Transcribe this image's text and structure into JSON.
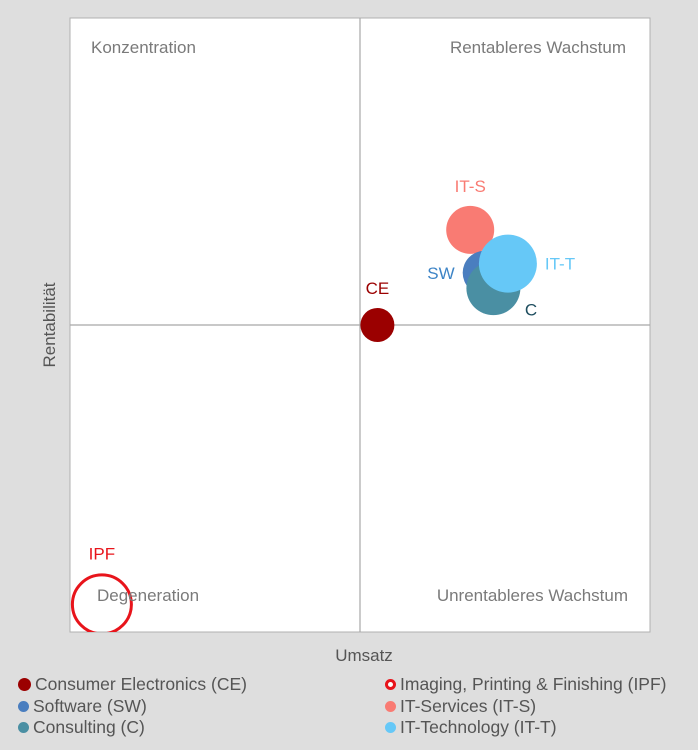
{
  "chart_data": {
    "type": "scatter",
    "subtype": "bubble-quadrant",
    "xlabel": "Umsatz",
    "ylabel": "Rentabilität",
    "xlim": [
      -1,
      1
    ],
    "ylim": [
      -1,
      1
    ],
    "grid": false,
    "quadrants": {
      "top_left": "Konzentration",
      "top_right": "Rentableres Wachstum",
      "bottom_left": "Degeneration",
      "bottom_right": "Unrentableres Wachstum"
    },
    "legend_placement": "bottom",
    "series": [
      {
        "name": "Consumer Electronics (CE)",
        "label": "CE",
        "x": 0.06,
        "y": 0.0,
        "size": 17,
        "color": "#9b0000",
        "label_color": "#9b0000",
        "label_pos": "top",
        "style": "filled"
      },
      {
        "name": "Imaging, Printing & Finishing (IPF)",
        "label": "IPF",
        "x": -0.89,
        "y": -0.91,
        "size": 31,
        "color": "#e8141b",
        "label_color": "#e8141b",
        "label_pos": "top",
        "style": "ring"
      },
      {
        "name": "IT-Services (IT-S)",
        "label": "IT-S",
        "x": 0.38,
        "y": 0.31,
        "size": 24,
        "color": "#f97b73",
        "label_color": "#f97b73",
        "label_pos": "top",
        "style": "filled"
      },
      {
        "name": "Software (SW)",
        "label": "SW",
        "x": 0.43,
        "y": 0.17,
        "size": 22,
        "color": "#4a7ebf",
        "label_color": "#3d84c6",
        "label_pos": "left",
        "style": "filled"
      },
      {
        "name": "Consulting (C)",
        "label": "C",
        "x": 0.46,
        "y": 0.12,
        "size": 27,
        "color": "#4a8fa3",
        "label_color": "#1f4e5f",
        "label_pos": "bottom-right",
        "style": "filled"
      },
      {
        "name": "IT-Technology (IT-T)",
        "label": "IT-T",
        "x": 0.51,
        "y": 0.2,
        "size": 29,
        "color": "#66c8f7",
        "label_color": "#66c8f7",
        "label_pos": "right",
        "style": "filled"
      }
    ],
    "legend_order": [
      0,
      1,
      3,
      2,
      4,
      5
    ]
  }
}
